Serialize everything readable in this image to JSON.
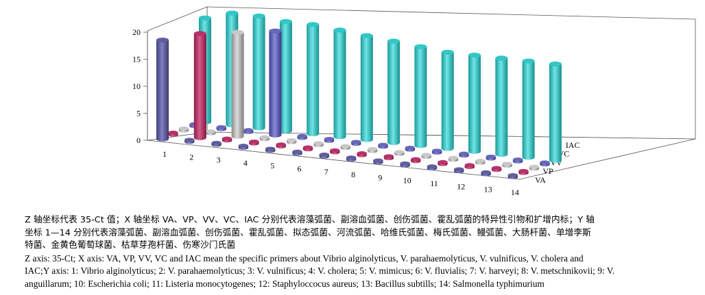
{
  "chart_data": {
    "type": "bar",
    "style": "3d-cylinder",
    "z_axis": {
      "ylim": [
        0,
        20
      ],
      "ticks": [
        "0",
        "5",
        "10",
        "15",
        "20"
      ]
    },
    "x_categories": [
      "1",
      "2",
      "3",
      "4",
      "5",
      "6",
      "7",
      "8",
      "9",
      "10",
      "11",
      "12",
      "13",
      "14"
    ],
    "y_series_labels": [
      "VA",
      "VP",
      "VV",
      "VC",
      "IAC"
    ],
    "colors": {
      "VA": "#5f5f9f",
      "VP": "#b8326a",
      "VV": "#c8c8c8",
      "VC": "#6868b8",
      "IAC": "#33c6c6"
    },
    "series": [
      {
        "name": "VA",
        "values": [
          19,
          0,
          0,
          0,
          0,
          0,
          0,
          0,
          0,
          0,
          0,
          0,
          0,
          0
        ]
      },
      {
        "name": "VP",
        "values": [
          0,
          20,
          0,
          0,
          0,
          0,
          0,
          0,
          0,
          0,
          0,
          0,
          0,
          0
        ]
      },
      {
        "name": "VV",
        "values": [
          0,
          0,
          20,
          0,
          0,
          0,
          0,
          0,
          0,
          0,
          0,
          0,
          0,
          0
        ]
      },
      {
        "name": "VC",
        "values": [
          0,
          0,
          0,
          20,
          0,
          0,
          0,
          0,
          0,
          0,
          0,
          0,
          0,
          0
        ]
      },
      {
        "name": "IAC",
        "values": [
          20,
          21.5,
          21.5,
          21,
          21,
          20.5,
          20,
          19.5,
          19,
          18.5,
          18.5,
          18.5,
          18.5,
          18.5
        ]
      }
    ]
  },
  "caption": {
    "zh_line1": "Z 轴坐标代表 35-Ct 值；X 轴坐标 VA、VP、VV、VC、IAC 分别代表溶藻弧菌、副溶血弧菌、创伤弧菌、霍乱弧菌的特异性引物和扩增内标；Y 轴",
    "zh_line2": "坐标 1—14 分别代表溶藻弧菌、副溶血弧菌、创伤弧菌、霍乱弧菌、拟态弧菌、河流弧菌、哈维氏弧菌、梅氏弧菌、鳗弧菌、大肠杆菌、单增李斯",
    "zh_line3": "特菌、金黄色葡萄球菌、枯草芽孢杆菌、伤寒沙门氏菌",
    "en_line1": "Z axis: 35-Ct; X axis: VA, VP, VV, VC and IAC mean the specific primers about Vibrio alginolyticus, V. parahaemolyticus, V. vulnificus, V. cholera and",
    "en_line2": "IAC;Y axis: 1: Vibrio alginolyticus; 2: V. parahaemolyticus; 3: V. vulnificus; 4: V. cholera; 5: V. mimicus; 6: V. fluvialis; 7: V. harveyi; 8: V. metschnikovii; 9: V.",
    "en_line3": "anguillarum; 10: Escherichia coli; 11: Listeria monocytogenes; 12: Staphyloccocus aureus; 13: Bacillus subtills; 14: Salmonella typhimurium"
  }
}
